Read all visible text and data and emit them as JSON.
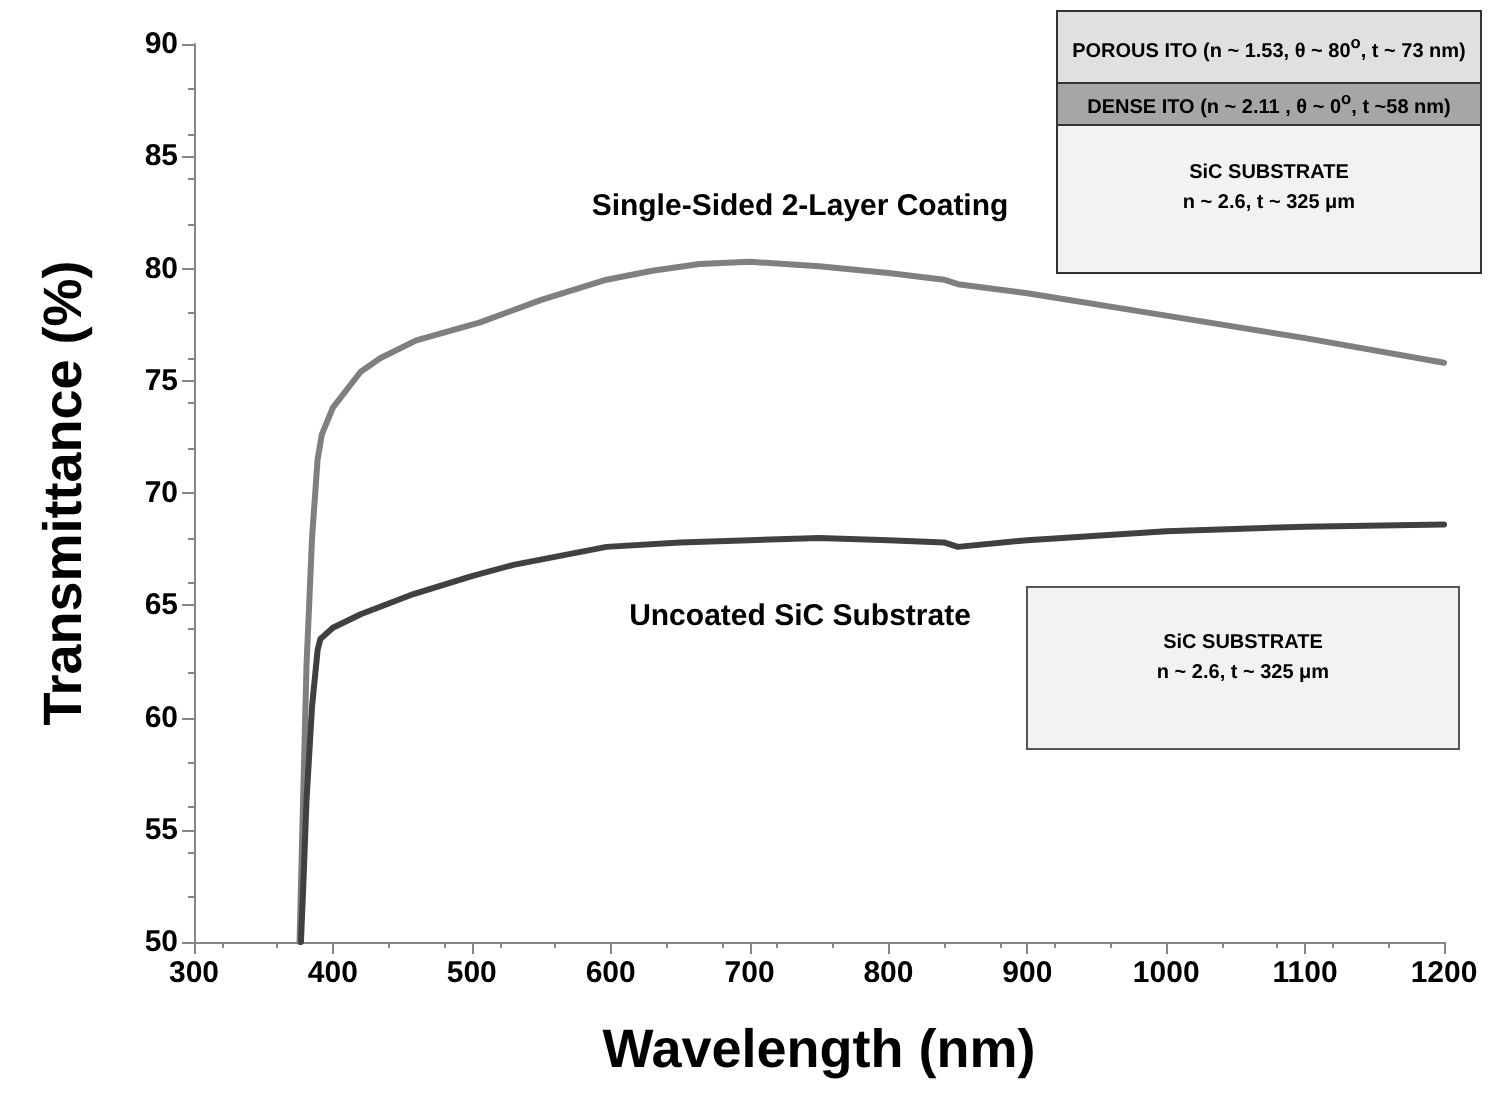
{
  "chart_data": {
    "type": "line",
    "xlabel": "Wavelength (nm)",
    "ylabel": "Transmittance (%)",
    "xlim": [
      300,
      1200
    ],
    "xticks": [
      300,
      400,
      500,
      600,
      700,
      800,
      900,
      1000,
      1100,
      1200
    ],
    "ylim": [
      50,
      90
    ],
    "yticks": [
      50,
      55,
      60,
      65,
      70,
      75,
      80,
      85,
      90
    ],
    "grid": false,
    "legend": false,
    "marker": "none",
    "line_style": "solid",
    "series": [
      {
        "name": "Single-Sided 2-Layer Coating",
        "color": "#7f7f7f",
        "x": [
          376,
          378,
          381,
          385,
          389,
          392,
          400,
          420,
          434,
          460,
          506,
          550,
          597,
          630,
          664,
          700,
          750,
          800,
          840,
          850,
          900,
          1000,
          1100,
          1200
        ],
        "values": [
          50,
          55,
          62.3,
          68,
          71.5,
          72.6,
          73.8,
          75.4,
          76,
          76.8,
          77.6,
          78.6,
          79.5,
          79.9,
          80.2,
          80.3,
          80.1,
          79.8,
          79.5,
          79.3,
          78.9,
          77.9,
          76.9,
          75.8
        ]
      },
      {
        "name": "Uncoated SiC Substrate",
        "color": "#404040",
        "x": [
          377,
          379,
          381,
          385,
          389,
          391,
          400,
          420,
          458,
          500,
          530,
          597,
          650,
          700,
          750,
          800,
          840,
          850,
          900,
          1000,
          1100,
          1200
        ],
        "values": [
          50,
          53,
          56.3,
          60.5,
          63,
          63.5,
          64,
          64.6,
          65.5,
          66.3,
          66.8,
          67.6,
          67.8,
          67.9,
          68,
          67.9,
          67.8,
          67.6,
          67.9,
          68.3,
          68.5,
          68.6
        ]
      }
    ],
    "annotations": [
      "POROUS ITO (n ~ 1.53, θ ~ 80$^{o}$, t ~ 73 nm)",
      "DENSE ITO (n ~ 2.11 , θ ~ 0$^{o}$, t ~58 nm)",
      "SiC SUBSTRATE\nn ~ 2.6, t ~ 325 μm",
      "SiC SUBSTRATE\nn ~ 2.6, t ~ 325 μm"
    ]
  }
}
